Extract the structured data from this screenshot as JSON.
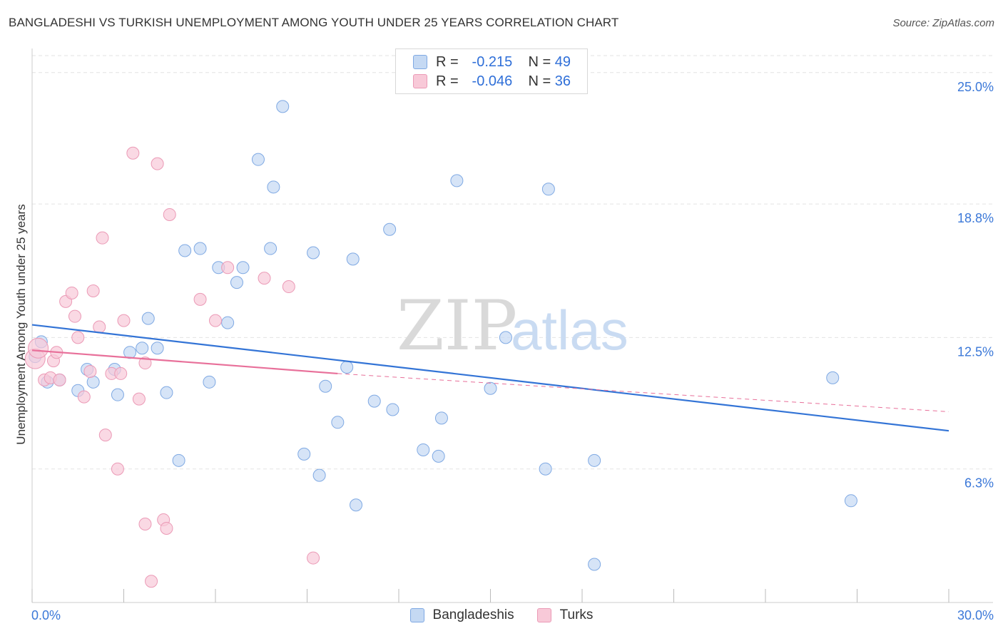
{
  "header": {
    "title": "BANGLADESHI VS TURKISH UNEMPLOYMENT AMONG YOUTH UNDER 25 YEARS CORRELATION CHART",
    "source": "Source: ZipAtlas.com"
  },
  "watermark": {
    "zip": "ZIP",
    "atlas": "atlas"
  },
  "legend": {
    "rows": [
      {
        "r_label": "R =",
        "r_value": "-0.215",
        "n_label": "N =",
        "n_value": "49"
      },
      {
        "r_label": "R =",
        "r_value": "-0.046",
        "n_label": "N =",
        "n_value": "36"
      }
    ]
  },
  "bottom_legend": {
    "items": [
      "Bangladeshis",
      "Turks"
    ]
  },
  "colors": {
    "blue_fill": "#c5d9f3",
    "blue_stroke": "#7fa9e3",
    "blue_line": "#3374d6",
    "pink_fill": "#f8c9d8",
    "pink_stroke": "#eb9ab6",
    "pink_line": "#e8709a",
    "grid": "#e3e3e3",
    "tick_label": "#3b78d8"
  },
  "chart_data": {
    "type": "scatter",
    "title": "BANGLADESHI VS TURKISH UNEMPLOYMENT AMONG YOUTH UNDER 25 YEARS CORRELATION CHART",
    "xlabel": "",
    "ylabel": "Unemployment Among Youth under 25 years",
    "xlim": [
      0,
      30
    ],
    "ylim": [
      0,
      25.8
    ],
    "x_tick_labels": [
      "0.0%",
      "30.0%"
    ],
    "y_ticks": [
      6.3,
      12.5,
      18.8,
      25.0
    ],
    "y_tick_labels": [
      "6.3%",
      "12.5%",
      "18.8%",
      "25.0%"
    ],
    "grid": true,
    "legend_position": "top-center",
    "series": [
      {
        "name": "Bangladeshis",
        "R": -0.215,
        "N": 49,
        "trend": {
          "x": [
            0,
            30
          ],
          "y": [
            13.1,
            8.1
          ]
        },
        "points": [
          [
            0.1,
            11.6
          ],
          [
            0.5,
            10.4
          ],
          [
            0.9,
            10.5
          ],
          [
            1.5,
            10.0
          ],
          [
            1.8,
            11.0
          ],
          [
            2.0,
            10.4
          ],
          [
            2.7,
            11.0
          ],
          [
            2.8,
            9.8
          ],
          [
            3.2,
            11.8
          ],
          [
            3.6,
            12.0
          ],
          [
            3.8,
            13.4
          ],
          [
            4.1,
            12.0
          ],
          [
            4.4,
            9.9
          ],
          [
            4.8,
            6.7
          ],
          [
            5.0,
            16.6
          ],
          [
            5.5,
            16.7
          ],
          [
            5.8,
            10.4
          ],
          [
            6.1,
            15.8
          ],
          [
            6.4,
            13.2
          ],
          [
            6.7,
            15.1
          ],
          [
            6.9,
            15.8
          ],
          [
            7.4,
            20.9
          ],
          [
            7.8,
            16.7
          ],
          [
            7.9,
            19.6
          ],
          [
            8.2,
            23.4
          ],
          [
            8.9,
            7.0
          ],
          [
            9.2,
            16.5
          ],
          [
            9.4,
            6.0
          ],
          [
            9.6,
            10.2
          ],
          [
            10.0,
            8.5
          ],
          [
            10.5,
            16.2
          ],
          [
            10.6,
            4.6
          ],
          [
            10.3,
            11.1
          ],
          [
            11.2,
            9.5
          ],
          [
            11.7,
            17.6
          ],
          [
            11.8,
            9.1
          ],
          [
            12.8,
            7.2
          ],
          [
            13.3,
            6.9
          ],
          [
            13.4,
            8.7
          ],
          [
            13.9,
            19.9
          ],
          [
            15.0,
            10.1
          ],
          [
            15.5,
            12.5
          ],
          [
            16.8,
            6.3
          ],
          [
            16.9,
            19.5
          ],
          [
            18.4,
            6.7
          ],
          [
            18.4,
            1.8
          ],
          [
            26.2,
            10.6
          ],
          [
            26.8,
            4.8
          ],
          [
            0.3,
            12.3
          ]
        ]
      },
      {
        "name": "Turks",
        "R": -0.046,
        "N": 36,
        "trend": {
          "x": [
            0,
            10.0
          ],
          "y": [
            11.9,
            10.8
          ]
        },
        "trend_dashed": {
          "x": [
            10.0,
            30
          ],
          "y": [
            10.8,
            9.0
          ]
        },
        "points": [
          [
            0.1,
            11.5
          ],
          [
            0.2,
            12.0
          ],
          [
            0.4,
            10.5
          ],
          [
            0.6,
            10.6
          ],
          [
            0.7,
            11.4
          ],
          [
            0.8,
            11.8
          ],
          [
            0.9,
            10.5
          ],
          [
            1.1,
            14.2
          ],
          [
            1.3,
            14.6
          ],
          [
            1.4,
            13.5
          ],
          [
            1.5,
            12.5
          ],
          [
            1.7,
            9.7
          ],
          [
            1.9,
            10.9
          ],
          [
            2.0,
            14.7
          ],
          [
            2.2,
            13.0
          ],
          [
            2.3,
            17.2
          ],
          [
            2.4,
            7.9
          ],
          [
            2.6,
            10.8
          ],
          [
            2.8,
            6.3
          ],
          [
            2.9,
            10.8
          ],
          [
            3.0,
            13.3
          ],
          [
            3.3,
            21.2
          ],
          [
            3.5,
            9.6
          ],
          [
            3.7,
            11.3
          ],
          [
            3.7,
            3.7
          ],
          [
            3.9,
            1.0
          ],
          [
            4.1,
            20.7
          ],
          [
            4.3,
            3.9
          ],
          [
            4.4,
            3.5
          ],
          [
            4.5,
            18.3
          ],
          [
            5.5,
            14.3
          ],
          [
            6.0,
            13.3
          ],
          [
            6.4,
            15.8
          ],
          [
            7.6,
            15.3
          ],
          [
            8.4,
            14.9
          ],
          [
            9.2,
            2.1
          ]
        ]
      }
    ]
  }
}
